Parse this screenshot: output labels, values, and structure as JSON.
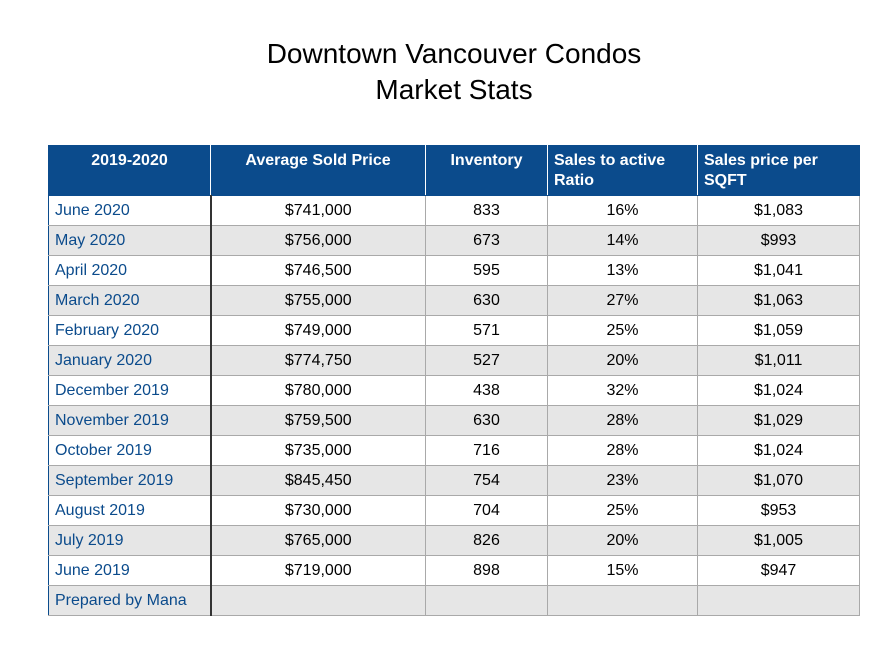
{
  "title": {
    "line1": "Downtown Vancouver Condos",
    "line2": "Market Stats"
  },
  "table": {
    "headers": [
      "2019-2020",
      "Average Sold Price",
      "Inventory",
      "Sales to active Ratio",
      "Sales price per SQFT"
    ],
    "rows": [
      [
        "June 2020",
        "$741,000",
        "833",
        "16%",
        "$1,083"
      ],
      [
        "May 2020",
        "$756,000",
        "673",
        "14%",
        "$993"
      ],
      [
        "April 2020",
        "$746,500",
        "595",
        "13%",
        "$1,041"
      ],
      [
        "March 2020",
        "$755,000",
        "630",
        "27%",
        "$1,063"
      ],
      [
        "February 2020",
        "$749,000",
        "571",
        "25%",
        "$1,059"
      ],
      [
        "January 2020",
        "$774,750",
        "527",
        "20%",
        "$1,011"
      ],
      [
        "December 2019",
        "$780,000",
        "438",
        "32%",
        "$1,024"
      ],
      [
        "November 2019",
        "$759,500",
        "630",
        "28%",
        "$1,029"
      ],
      [
        "October 2019",
        "$735,000",
        "716",
        "28%",
        "$1,024"
      ],
      [
        "September 2019",
        "$845,450",
        "754",
        "23%",
        "$1,070"
      ],
      [
        "August 2019",
        "$730,000",
        "704",
        "25%",
        "$953"
      ],
      [
        "July 2019",
        "$765,000",
        "826",
        "20%",
        "$1,005"
      ],
      [
        "June 2019",
        "$719,000",
        "898",
        "15%",
        "$947"
      ],
      [
        "Prepared by Mana",
        "",
        "",
        "",
        ""
      ]
    ]
  },
  "colors": {
    "header_bg": "#0b4b8c",
    "header_text": "#ffffff",
    "month_text": "#0b4b8c",
    "stripe": "#e6e6e6"
  }
}
